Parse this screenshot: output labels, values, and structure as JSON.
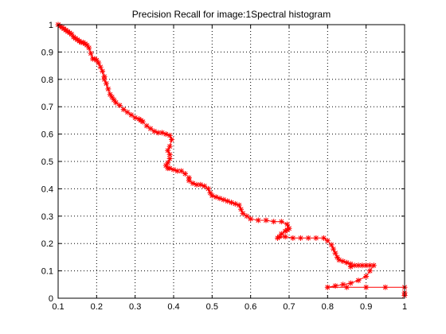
{
  "chart_data": {
    "type": "line",
    "title": "Precision Recall for image:1Spectral histogram",
    "xlabel": "",
    "ylabel": "",
    "xlim": [
      0.1,
      1
    ],
    "ylim": [
      0,
      1
    ],
    "x_ticks": [
      "0.1",
      "0.2",
      "0.3",
      "0.4",
      "0.5",
      "0.6",
      "0.7",
      "0.8",
      "0.9",
      "1"
    ],
    "y_ticks": [
      "0",
      "0.1",
      "0.2",
      "0.3",
      "0.4",
      "0.5",
      "0.6",
      "0.7",
      "0.8",
      "0.9",
      "1"
    ],
    "grid": true,
    "marker": "star",
    "color": "#ff0000",
    "series": [
      {
        "x": [
          0.1,
          0.105,
          0.11,
          0.115,
          0.12,
          0.125,
          0.13,
          0.135,
          0.14,
          0.145,
          0.15,
          0.155,
          0.16,
          0.165,
          0.17,
          0.175,
          0.18,
          0.185,
          0.19,
          0.195,
          0.2,
          0.205,
          0.21,
          0.215,
          0.22,
          0.22,
          0.225,
          0.23,
          0.235,
          0.24,
          0.245,
          0.25,
          0.26,
          0.27,
          0.28,
          0.29,
          0.3,
          0.31,
          0.315,
          0.32,
          0.33,
          0.34,
          0.35,
          0.36,
          0.37,
          0.38,
          0.39,
          0.395,
          0.39,
          0.385,
          0.39,
          0.39,
          0.385,
          0.38,
          0.385,
          0.39,
          0.4,
          0.41,
          0.42,
          0.43,
          0.44,
          0.44,
          0.45,
          0.46,
          0.47,
          0.48,
          0.49,
          0.495,
          0.5,
          0.51,
          0.52,
          0.53,
          0.54,
          0.55,
          0.56,
          0.57,
          0.575,
          0.58,
          0.59,
          0.6,
          0.62,
          0.64,
          0.66,
          0.68,
          0.695,
          0.7,
          0.695,
          0.69,
          0.68,
          0.675,
          0.67,
          0.69,
          0.71,
          0.73,
          0.75,
          0.77,
          0.79,
          0.8,
          0.81,
          0.815,
          0.82,
          0.825,
          0.83,
          0.84,
          0.85,
          0.86,
          0.86,
          0.87,
          0.88,
          0.89,
          0.9,
          0.91,
          0.92,
          0.91,
          0.9,
          0.88,
          0.86,
          0.84,
          0.82,
          0.8,
          0.85,
          0.9,
          0.95,
          1.0,
          1.0,
          1.0
        ],
        "y": [
          1.0,
          0.995,
          0.99,
          0.985,
          0.98,
          0.975,
          0.97,
          0.965,
          0.955,
          0.95,
          0.945,
          0.94,
          0.935,
          0.935,
          0.93,
          0.925,
          0.915,
          0.895,
          0.875,
          0.875,
          0.87,
          0.86,
          0.845,
          0.83,
          0.81,
          0.8,
          0.785,
          0.765,
          0.745,
          0.735,
          0.725,
          0.715,
          0.705,
          0.69,
          0.68,
          0.67,
          0.66,
          0.655,
          0.65,
          0.645,
          0.63,
          0.62,
          0.61,
          0.605,
          0.605,
          0.6,
          0.595,
          0.58,
          0.555,
          0.54,
          0.525,
          0.51,
          0.495,
          0.485,
          0.475,
          0.475,
          0.47,
          0.465,
          0.465,
          0.455,
          0.44,
          0.43,
          0.42,
          0.415,
          0.415,
          0.41,
          0.4,
          0.385,
          0.375,
          0.37,
          0.365,
          0.36,
          0.355,
          0.35,
          0.345,
          0.34,
          0.325,
          0.31,
          0.3,
          0.29,
          0.285,
          0.285,
          0.28,
          0.28,
          0.27,
          0.255,
          0.25,
          0.245,
          0.235,
          0.225,
          0.22,
          0.225,
          0.22,
          0.22,
          0.22,
          0.22,
          0.22,
          0.21,
          0.195,
          0.18,
          0.165,
          0.15,
          0.14,
          0.135,
          0.13,
          0.125,
          0.115,
          0.12,
          0.12,
          0.12,
          0.12,
          0.12,
          0.12,
          0.1,
          0.08,
          0.065,
          0.055,
          0.05,
          0.045,
          0.04,
          0.04,
          0.04,
          0.04,
          0.04,
          0.02,
          0.01
        ]
      }
    ]
  }
}
